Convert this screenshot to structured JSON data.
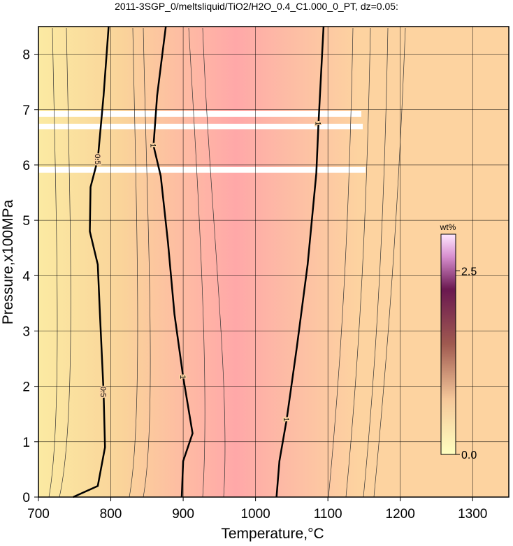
{
  "chart_data": {
    "type": "contour",
    "title": "2011-3SGP_0/meltsliquid/TiO2/H2O_0.4_C1.000_0_PT, dz=0.05:",
    "xlabel": "Temperature,°C",
    "ylabel": "Pressure,x100MPa",
    "xlim": [
      700,
      1350
    ],
    "ylim": [
      0,
      8.5
    ],
    "xticks": [
      700,
      800,
      900,
      1000,
      1100,
      1200,
      1300
    ],
    "yticks": [
      0,
      1,
      2,
      3,
      4,
      5,
      6,
      7,
      8
    ],
    "grid": true,
    "contours": [
      {
        "level": 0.5,
        "color": "#000000",
        "x": [
          748,
          782,
          792,
          790,
          785,
          782,
          771,
          772,
          782,
          790,
          797
        ],
        "y": [
          0,
          0.2,
          0.9,
          1.9,
          3.3,
          4.2,
          4.8,
          5.6,
          6.1,
          7.25,
          8.5
        ]
      },
      {
        "level": 1,
        "color": "#000000",
        "x": [
          898,
          900,
          913,
          900,
          888,
          879,
          869,
          859,
          864,
          876
        ],
        "y": [
          0,
          0.65,
          1.15,
          2.17,
          3.3,
          4.6,
          5.8,
          6.35,
          7.25,
          8.5
        ]
      },
      {
        "level": 1,
        "color": "#000000",
        "x": [
          1029,
          1033,
          1043,
          1057,
          1072,
          1084,
          1087,
          1094
        ],
        "y": [
          0,
          0.65,
          1.4,
          2.7,
          4.2,
          5.85,
          6.75,
          8.5
        ]
      }
    ],
    "colorbar": {
      "label": "wt%",
      "clim": [
        0,
        3.0
      ],
      "ticks": [
        {
          "value": 0,
          "label": "0.0"
        },
        {
          "value": 2.5,
          "label": "2.5"
        }
      ]
    }
  }
}
